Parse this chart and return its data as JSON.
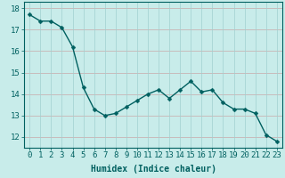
{
  "x": [
    0,
    1,
    2,
    3,
    4,
    5,
    6,
    7,
    8,
    9,
    10,
    11,
    12,
    13,
    14,
    15,
    16,
    17,
    18,
    19,
    20,
    21,
    22,
    23
  ],
  "y": [
    17.7,
    17.4,
    17.4,
    17.1,
    16.2,
    14.3,
    13.3,
    13.0,
    13.1,
    13.4,
    13.7,
    14.0,
    14.2,
    13.8,
    14.2,
    14.6,
    14.1,
    14.2,
    13.6,
    13.3,
    13.3,
    13.1,
    12.1,
    11.8
  ],
  "xlabel": "Humidex (Indice chaleur)",
  "ylim": [
    11.5,
    18.3
  ],
  "xlim": [
    -0.5,
    23.5
  ],
  "yticks": [
    12,
    13,
    14,
    15,
    16,
    17,
    18
  ],
  "xticks": [
    0,
    1,
    2,
    3,
    4,
    5,
    6,
    7,
    8,
    9,
    10,
    11,
    12,
    13,
    14,
    15,
    16,
    17,
    18,
    19,
    20,
    21,
    22,
    23
  ],
  "line_color": "#006060",
  "marker_color": "#006060",
  "bg_color": "#c8ecea",
  "grid_color_h": "#c8a8a8",
  "grid_color_v": "#a0d0d0",
  "axis_color": "#006060",
  "tick_label_color": "#006060",
  "xlabel_color": "#006060",
  "xlabel_fontsize": 7,
  "tick_fontsize": 6.5
}
